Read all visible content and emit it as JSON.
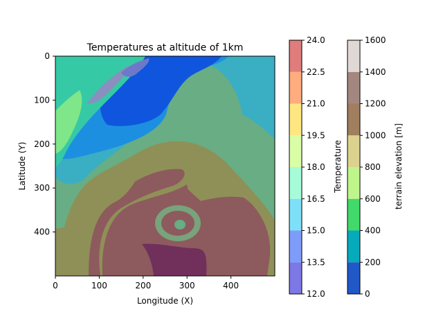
{
  "chart_data": [
    {
      "type": "heatmap",
      "title": "Temperatures at altitude of 1km",
      "xlabel": "Longitude (X)",
      "ylabel": "Latitude (Y)",
      "xlim": [
        0,
        500
      ],
      "ylim": [
        500,
        0
      ],
      "xticks": [
        0,
        100,
        200,
        300,
        400
      ],
      "yticks": [
        0,
        100,
        200,
        300,
        400
      ],
      "grid": false,
      "cyclone_center": [
        285,
        380
      ]
    },
    {
      "type": "colorbar",
      "label": "Temperature",
      "levels": [
        "12.0",
        "13.5",
        "15.0",
        "16.5",
        "18.0",
        "19.5",
        "21.0",
        "22.5",
        "24.0"
      ],
      "colors": [
        "#7c78e6",
        "#7e9dfa",
        "#7ee0f8",
        "#a6fcd8",
        "#dafea6",
        "#fee680",
        "#ffac7e",
        "#e07c7c"
      ]
    },
    {
      "type": "colorbar",
      "label": "terrain elevation [m]",
      "levels": [
        "0",
        "200",
        "400",
        "600",
        "800",
        "1000",
        "1200",
        "1400",
        "1600"
      ],
      "colors": [
        "#2158c8",
        "#05aabb",
        "#42d96b",
        "#bff58a",
        "#dbd28d",
        "#a07e5e",
        "#a3877f",
        "#e0d8d5"
      ]
    }
  ]
}
